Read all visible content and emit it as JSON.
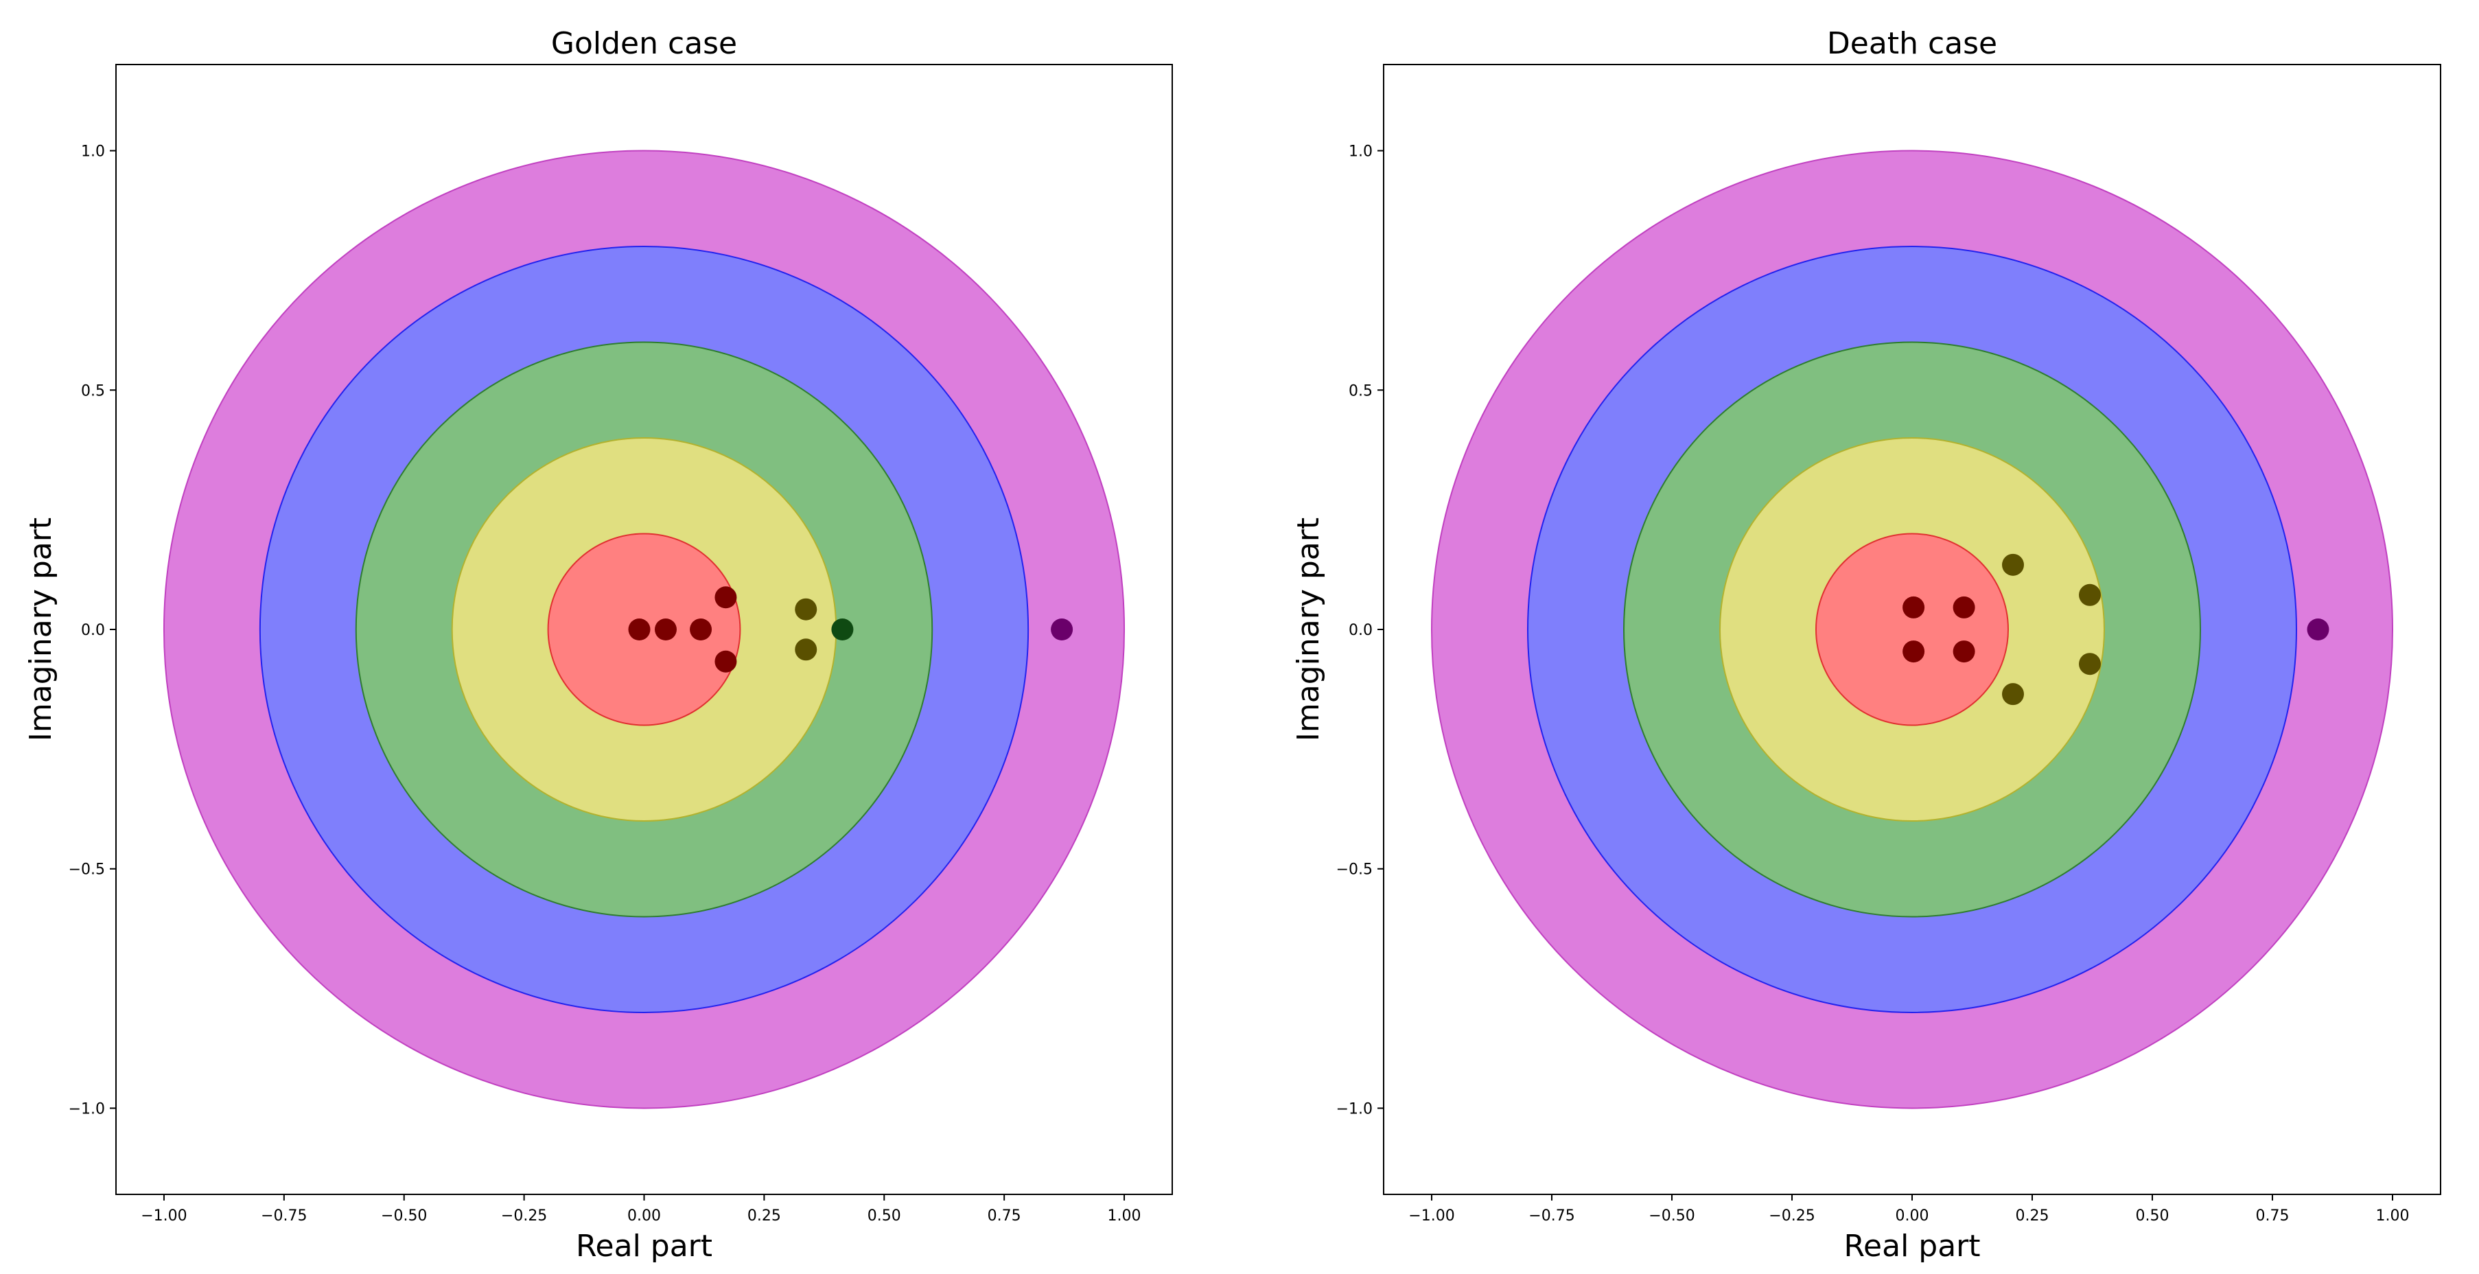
{
  "chart_data": [
    {
      "type": "scatter",
      "title": "Golden case",
      "xlabel": "Real part",
      "ylabel": "Imaginary part",
      "xlim": [
        -1.1,
        1.1
      ],
      "ylim": [
        -1.18,
        1.18
      ],
      "xticks": [
        -1.0,
        -0.75,
        -0.5,
        -0.25,
        0.0,
        0.25,
        0.5,
        0.75,
        1.0
      ],
      "xtick_labels": [
        "−1.00",
        "−0.75",
        "−0.50",
        "−0.25",
        "0.00",
        "0.25",
        "0.50",
        "0.75",
        "1.00"
      ],
      "yticks": [
        -1.0,
        -0.5,
        0.0,
        0.5,
        1.0
      ],
      "ytick_labels": [
        "−1.0",
        "−0.5",
        "0.0",
        "0.5",
        "1.0"
      ],
      "rings": [
        {
          "name": "ring-magenta",
          "radius": 1.0,
          "fill": "#dd7ddd",
          "stroke": "#c040c0"
        },
        {
          "name": "ring-blue",
          "radius": 0.8,
          "fill": "#7f7ffc",
          "stroke": "#2222ee"
        },
        {
          "name": "ring-green",
          "radius": 0.6,
          "fill": "#80bf80",
          "stroke": "#2e7d2e"
        },
        {
          "name": "ring-yellow",
          "radius": 0.4,
          "fill": "#e0df80",
          "stroke": "#b2b22e"
        },
        {
          "name": "ring-red",
          "radius": 0.2,
          "fill": "#ff8080",
          "stroke": "#e03030"
        }
      ],
      "points": [
        {
          "x": -0.01,
          "y": 0.0,
          "color": "#7a0000"
        },
        {
          "x": 0.045,
          "y": 0.0,
          "color": "#7a0000"
        },
        {
          "x": 0.118,
          "y": 0.0,
          "color": "#7a0000"
        },
        {
          "x": 0.17,
          "y": 0.067,
          "color": "#7a0000"
        },
        {
          "x": 0.17,
          "y": -0.067,
          "color": "#7a0000"
        },
        {
          "x": 0.337,
          "y": 0.042,
          "color": "#5a5000"
        },
        {
          "x": 0.337,
          "y": -0.042,
          "color": "#5a5000"
        },
        {
          "x": 0.413,
          "y": 0.0,
          "color": "#0f4a12"
        },
        {
          "x": 0.87,
          "y": 0.0,
          "color": "#6a006a"
        }
      ]
    },
    {
      "type": "scatter",
      "title": "Death case",
      "xlabel": "Real part",
      "ylabel": "Imaginary part",
      "xlim": [
        -1.1,
        1.1
      ],
      "ylim": [
        -1.18,
        1.18
      ],
      "xticks": [
        -1.0,
        -0.75,
        -0.5,
        -0.25,
        0.0,
        0.25,
        0.5,
        0.75,
        1.0
      ],
      "xtick_labels": [
        "−1.00",
        "−0.75",
        "−0.50",
        "−0.25",
        "0.00",
        "0.25",
        "0.50",
        "0.75",
        "1.00"
      ],
      "yticks": [
        -1.0,
        -0.5,
        0.0,
        0.5,
        1.0
      ],
      "ytick_labels": [
        "−1.0",
        "−0.5",
        "0.0",
        "0.5",
        "1.0"
      ],
      "rings": [
        {
          "name": "ring-magenta",
          "radius": 1.0,
          "fill": "#dd7ddd",
          "stroke": "#c040c0"
        },
        {
          "name": "ring-blue",
          "radius": 0.8,
          "fill": "#7f7ffc",
          "stroke": "#2222ee"
        },
        {
          "name": "ring-green",
          "radius": 0.6,
          "fill": "#80bf80",
          "stroke": "#2e7d2e"
        },
        {
          "name": "ring-yellow",
          "radius": 0.4,
          "fill": "#e0df80",
          "stroke": "#b2b22e"
        },
        {
          "name": "ring-red",
          "radius": 0.2,
          "fill": "#ff8080",
          "stroke": "#e03030"
        }
      ],
      "points": [
        {
          "x": 0.003,
          "y": 0.046,
          "color": "#7a0000"
        },
        {
          "x": 0.003,
          "y": -0.046,
          "color": "#7a0000"
        },
        {
          "x": 0.108,
          "y": 0.046,
          "color": "#7a0000"
        },
        {
          "x": 0.108,
          "y": -0.046,
          "color": "#7a0000"
        },
        {
          "x": 0.21,
          "y": 0.135,
          "color": "#5a5000"
        },
        {
          "x": 0.21,
          "y": -0.135,
          "color": "#5a5000"
        },
        {
          "x": 0.37,
          "y": 0.072,
          "color": "#5a5000"
        },
        {
          "x": 0.37,
          "y": -0.072,
          "color": "#5a5000"
        },
        {
          "x": 0.845,
          "y": 0.0,
          "color": "#6a006a"
        }
      ]
    }
  ]
}
